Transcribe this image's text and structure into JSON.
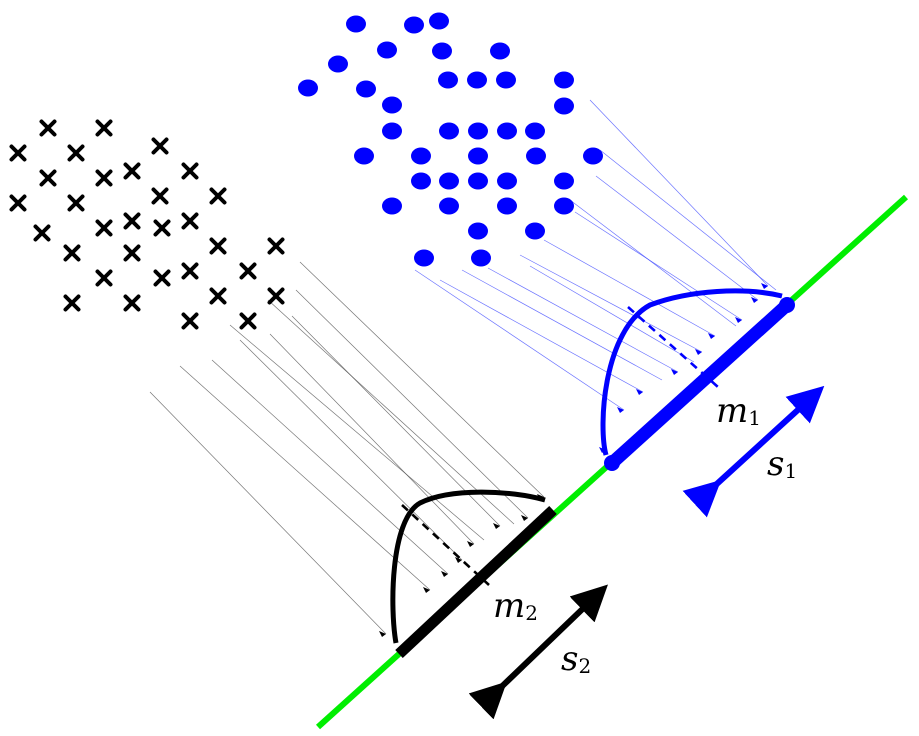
{
  "diagram": {
    "colors": {
      "class1": "#0000ff",
      "class2": "#000000",
      "axis": "#00ee00",
      "background": "#ffffff"
    },
    "labels": {
      "m1": {
        "main": "m",
        "sub": "1"
      },
      "s1": {
        "main": "s",
        "sub": "1"
      },
      "m2": {
        "main": "m",
        "sub": "2"
      },
      "s2": {
        "main": "s",
        "sub": "2"
      }
    },
    "class1_marker": "filled-ellipse",
    "class2_marker": "cross"
  }
}
